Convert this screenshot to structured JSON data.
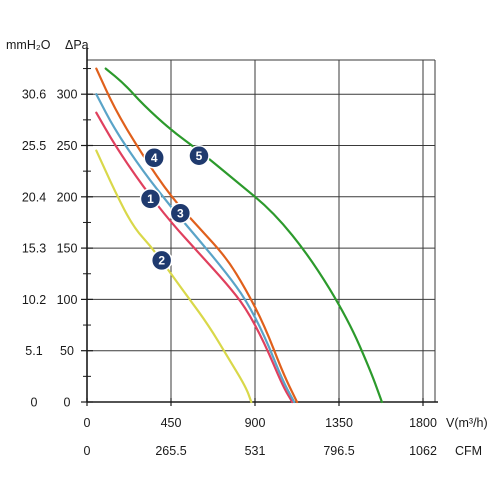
{
  "chart_data": {
    "type": "line",
    "unit_labels": {
      "mmh2o": "mmH₂O",
      "pa": "ΔPa",
      "flow": "V(m³/h)",
      "cfm": "CFM"
    },
    "y_pa_ticks": [
      "0",
      "50",
      "100",
      "150",
      "200",
      "250",
      "300"
    ],
    "y_mmh2o_ticks": [
      "0",
      "5.1",
      "10.2",
      "15.3",
      "20.4",
      "25.5",
      "30.6"
    ],
    "x_flow_ticks": [
      "0",
      "450",
      "900",
      "1350",
      "1800"
    ],
    "x_cfm_ticks": [
      "0",
      "265.5",
      "531",
      "796.5",
      "1062"
    ],
    "xlim": [
      0,
      1800
    ],
    "ylim": [
      0,
      330
    ],
    "grid": true,
    "series": [
      {
        "marker": "1",
        "color": "#e0405e",
        "x": [
          50,
          150,
          300,
          450,
          600,
          750,
          850,
          950,
          1050,
          1100
        ],
        "y": [
          282,
          250,
          210,
          175,
          145,
          115,
          92,
          58,
          15,
          0
        ]
      },
      {
        "marker": "2",
        "color": "#d9d84a",
        "x": [
          50,
          150,
          250,
          350,
          450,
          550,
          650,
          750,
          850,
          880
        ],
        "y": [
          245,
          205,
          170,
          150,
          125,
          100,
          75,
          45,
          15,
          0
        ]
      },
      {
        "marker": "3",
        "color": "#5aa4c8",
        "x": [
          50,
          150,
          300,
          450,
          600,
          750,
          850,
          950,
          1050,
          1110
        ],
        "y": [
          300,
          265,
          225,
          190,
          158,
          125,
          100,
          65,
          20,
          0
        ]
      },
      {
        "marker": "4",
        "color": "#e0601c",
        "x": [
          50,
          150,
          300,
          450,
          600,
          750,
          850,
          950,
          1050,
          1125
        ],
        "y": [
          325,
          285,
          240,
          200,
          170,
          140,
          110,
          75,
          28,
          0
        ]
      },
      {
        "marker": "5",
        "color": "#2c9a2c",
        "x": [
          100,
          200,
          300,
          450,
          600,
          800,
          1000,
          1200,
          1400,
          1520,
          1580
        ],
        "y": [
          325,
          310,
          290,
          265,
          245,
          215,
          185,
          140,
          80,
          30,
          0
        ]
      }
    ],
    "markers": [
      {
        "label": "1",
        "x": 340,
        "y": 198
      },
      {
        "label": "2",
        "x": 400,
        "y": 138
      },
      {
        "label": "3",
        "x": 500,
        "y": 184
      },
      {
        "label": "4",
        "x": 360,
        "y": 238
      },
      {
        "label": "5",
        "x": 600,
        "y": 240
      }
    ]
  }
}
